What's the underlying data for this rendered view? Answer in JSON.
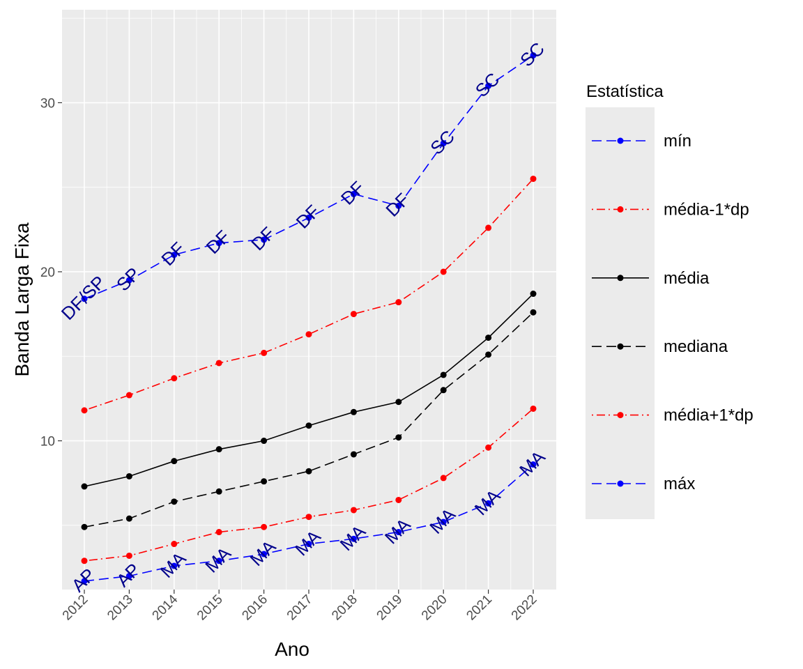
{
  "chart_data": {
    "type": "line",
    "xlabel": "Ano",
    "ylabel": "Banda Larga Fixa",
    "x": [
      "2012",
      "2013",
      "2014",
      "2015",
      "2016",
      "2017",
      "2018",
      "2019",
      "2020",
      "2021",
      "2022"
    ],
    "ylim": [
      1.2,
      35.5
    ],
    "yticks": [
      10,
      20,
      30
    ],
    "ytick_labels": [
      "10",
      "20",
      "30"
    ],
    "grid": true,
    "legend": {
      "title": "Estatística",
      "position": "right"
    },
    "series": [
      {
        "name": "mín",
        "color": "#0000ff",
        "dash": "dashed",
        "values": [
          18.4,
          19.5,
          21.0,
          21.7,
          21.9,
          23.2,
          24.6,
          23.9,
          27.6,
          31.0,
          32.8
        ],
        "labels": [
          "DF/SP",
          "SP",
          "DF",
          "DF",
          "DF",
          "DF",
          "DF",
          "DF",
          "SC",
          "SC",
          "SC"
        ]
      },
      {
        "name": "média-1*dp",
        "color": "#ff0000",
        "dash": "dotdash",
        "values": [
          11.8,
          12.7,
          13.7,
          14.6,
          15.2,
          16.3,
          17.5,
          18.2,
          20.0,
          22.6,
          25.5
        ]
      },
      {
        "name": "média",
        "color": "#000000",
        "dash": "solid",
        "values": [
          7.3,
          7.9,
          8.8,
          9.5,
          10.0,
          10.9,
          11.7,
          12.3,
          13.9,
          16.1,
          18.7
        ]
      },
      {
        "name": "mediana",
        "color": "#000000",
        "dash": "dashed",
        "values": [
          4.9,
          5.4,
          6.4,
          7.0,
          7.6,
          8.2,
          9.2,
          10.2,
          13.0,
          15.1,
          17.6
        ]
      },
      {
        "name": "média+1*dp",
        "color": "#ff0000",
        "dash": "dotdash",
        "values": [
          2.9,
          3.2,
          3.9,
          4.6,
          4.9,
          5.5,
          5.9,
          6.5,
          7.8,
          9.6,
          11.9
        ]
      },
      {
        "name": "máx",
        "color": "#0000ff",
        "dash": "dashed",
        "values": [
          1.7,
          2.0,
          2.6,
          2.9,
          3.3,
          3.9,
          4.2,
          4.6,
          5.2,
          6.3,
          8.6
        ],
        "labels": [
          "AP",
          "AP",
          "MA",
          "MA",
          "MA",
          "MA",
          "MA",
          "MA",
          "MA",
          "MA",
          "MA"
        ]
      }
    ]
  }
}
